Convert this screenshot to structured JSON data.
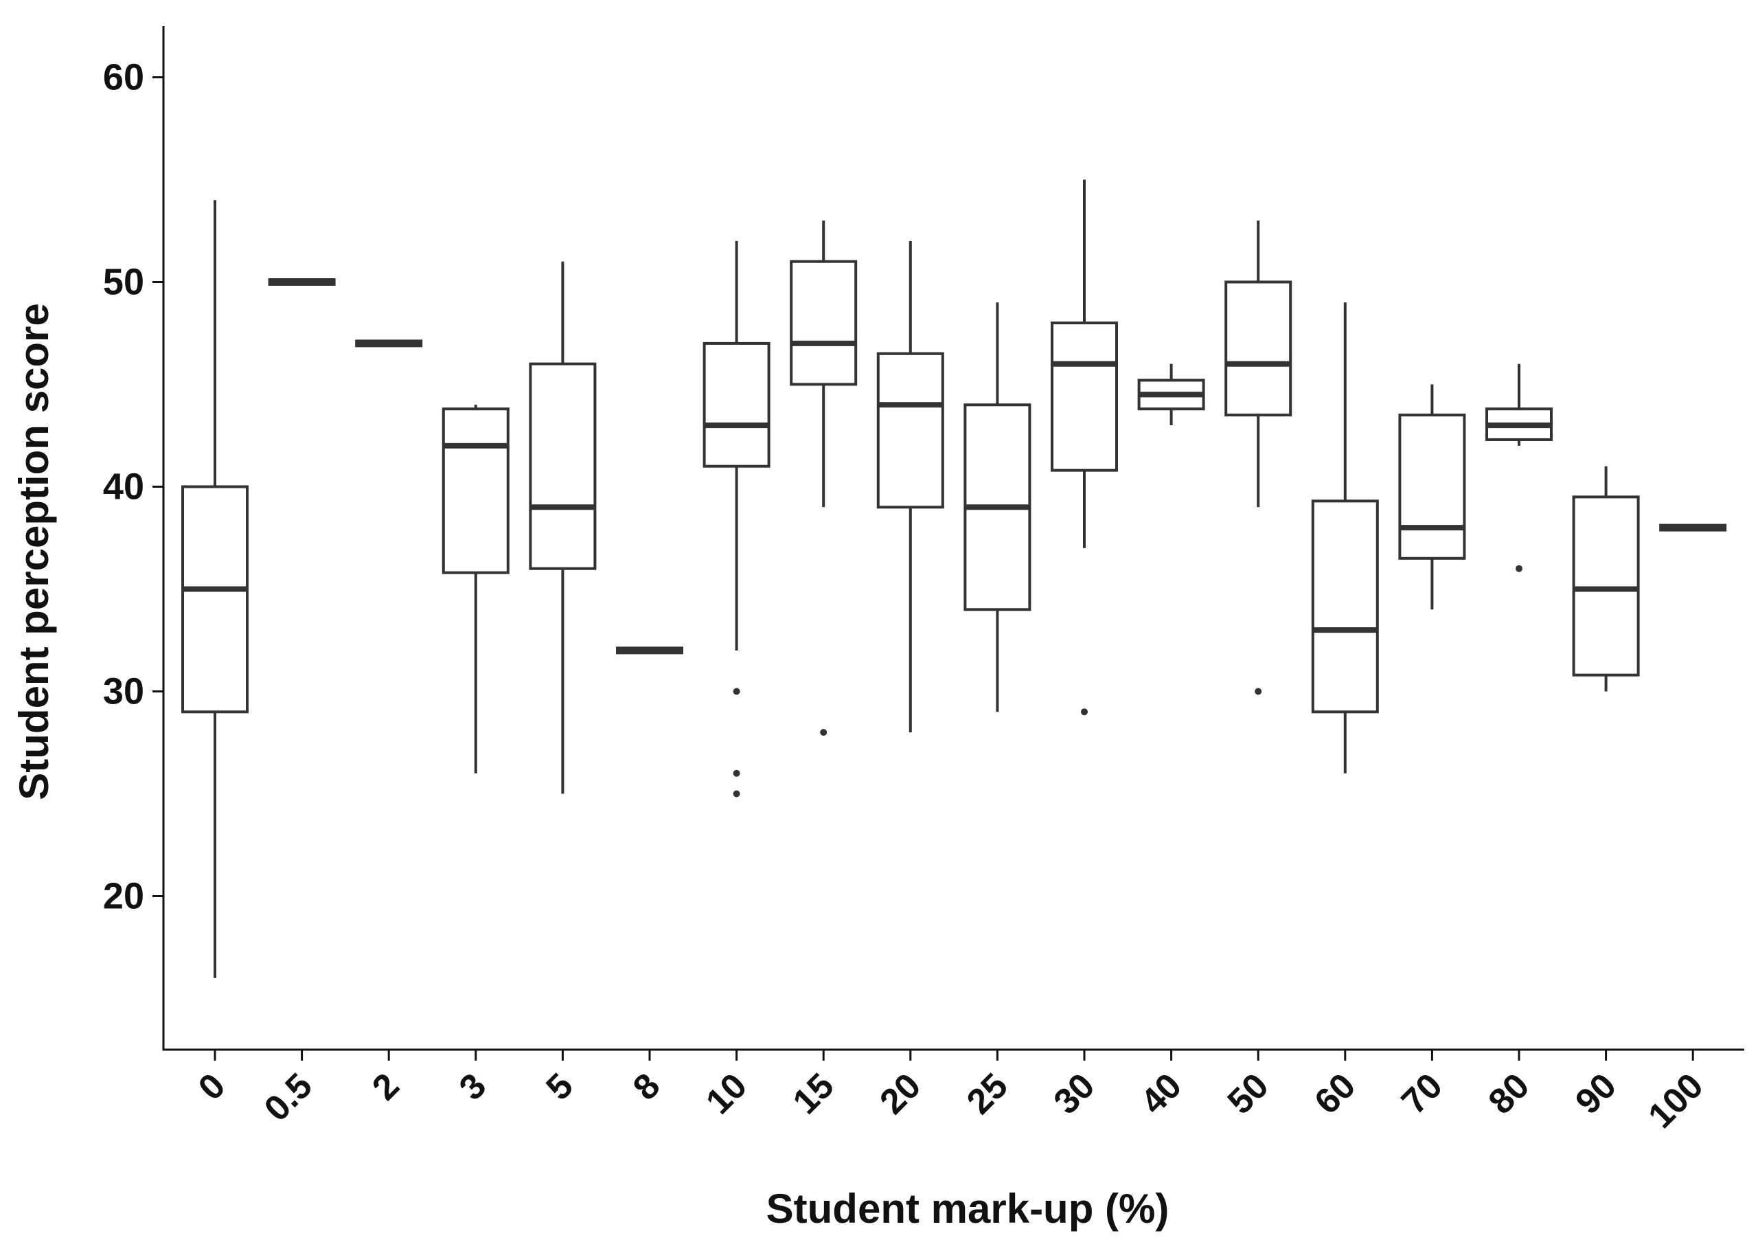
{
  "chart_data": {
    "type": "box",
    "xlabel": "Student mark-up (%)",
    "ylabel": "Student perception score",
    "ylim": [
      12.5,
      62.5
    ],
    "yticks": [
      20,
      30,
      40,
      50,
      60
    ],
    "grid": false,
    "legend": "none",
    "colors": {
      "box_stroke": "#333333",
      "median": "#333333",
      "axis": "#111111",
      "background": "#ffffff"
    },
    "categories": [
      "0",
      "0.5",
      "2",
      "3",
      "5",
      "8",
      "10",
      "15",
      "20",
      "25",
      "30",
      "40",
      "50",
      "60",
      "70",
      "80",
      "90",
      "100"
    ],
    "boxes": [
      {
        "category": "0",
        "whisker_low": 16,
        "q1": 29,
        "median": 35,
        "q3": 40,
        "whisker_high": 54,
        "outliers": []
      },
      {
        "category": "0.5",
        "whisker_low": 50,
        "q1": 50,
        "median": 50,
        "q3": 50,
        "whisker_high": 50,
        "outliers": []
      },
      {
        "category": "2",
        "whisker_low": 47,
        "q1": 47,
        "median": 47,
        "q3": 47,
        "whisker_high": 47,
        "outliers": []
      },
      {
        "category": "3",
        "whisker_low": 26,
        "q1": 35.8,
        "median": 42,
        "q3": 43.8,
        "whisker_high": 44,
        "outliers": []
      },
      {
        "category": "5",
        "whisker_low": 25,
        "q1": 36,
        "median": 39,
        "q3": 46,
        "whisker_high": 51,
        "outliers": []
      },
      {
        "category": "8",
        "whisker_low": 32,
        "q1": 32,
        "median": 32,
        "q3": 32,
        "whisker_high": 32,
        "outliers": []
      },
      {
        "category": "10",
        "whisker_low": 32,
        "q1": 41,
        "median": 43,
        "q3": 47,
        "whisker_high": 52,
        "outliers": [
          30,
          26,
          25
        ]
      },
      {
        "category": "15",
        "whisker_low": 39,
        "q1": 45,
        "median": 47,
        "q3": 51,
        "whisker_high": 53,
        "outliers": [
          28
        ]
      },
      {
        "category": "20",
        "whisker_low": 28,
        "q1": 39,
        "median": 44,
        "q3": 46.5,
        "whisker_high": 52,
        "outliers": []
      },
      {
        "category": "25",
        "whisker_low": 29,
        "q1": 34,
        "median": 39,
        "q3": 44,
        "whisker_high": 49,
        "outliers": []
      },
      {
        "category": "30",
        "whisker_low": 37,
        "q1": 40.8,
        "median": 46,
        "q3": 48,
        "whisker_high": 55,
        "outliers": [
          29
        ]
      },
      {
        "category": "40",
        "whisker_low": 43,
        "q1": 43.8,
        "median": 44.5,
        "q3": 45.2,
        "whisker_high": 46,
        "outliers": []
      },
      {
        "category": "50",
        "whisker_low": 39,
        "q1": 43.5,
        "median": 46,
        "q3": 50,
        "whisker_high": 53,
        "outliers": [
          30
        ]
      },
      {
        "category": "60",
        "whisker_low": 26,
        "q1": 29,
        "median": 33,
        "q3": 39.3,
        "whisker_high": 49,
        "outliers": []
      },
      {
        "category": "70",
        "whisker_low": 34,
        "q1": 36.5,
        "median": 38,
        "q3": 43.5,
        "whisker_high": 45,
        "outliers": []
      },
      {
        "category": "80",
        "whisker_low": 42,
        "q1": 42.3,
        "median": 43,
        "q3": 43.8,
        "whisker_high": 46,
        "outliers": [
          36
        ]
      },
      {
        "category": "90",
        "whisker_low": 30,
        "q1": 30.8,
        "median": 35,
        "q3": 39.5,
        "whisker_high": 41,
        "outliers": []
      },
      {
        "category": "100",
        "whisker_low": 38,
        "q1": 38,
        "median": 38,
        "q3": 38,
        "whisker_high": 38,
        "outliers": []
      }
    ]
  }
}
